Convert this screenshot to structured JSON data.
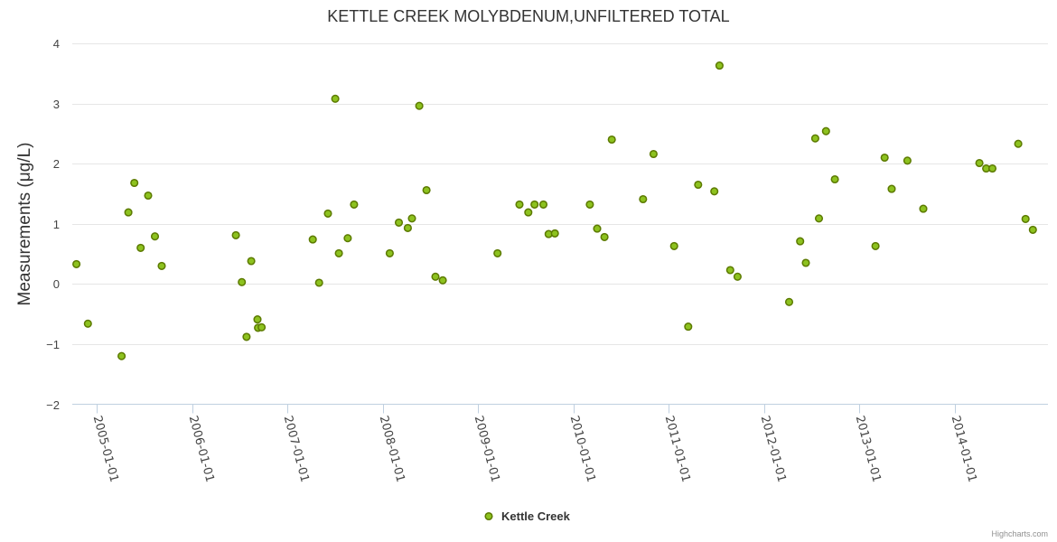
{
  "chart_data": {
    "type": "scatter",
    "title": "KETTLE CREEK MOLYBDENUM,UNFILTERED TOTAL",
    "ylabel": "Measurements (μg/L)",
    "xlabel": "",
    "ylim": [
      -2,
      4
    ],
    "yticks": [
      "−2",
      "−1",
      "0",
      "1",
      "2",
      "3",
      "4"
    ],
    "xticks": [
      "2005-01-01",
      "2006-01-01",
      "2007-01-01",
      "2008-01-01",
      "2009-01-01",
      "2010-01-01",
      "2011-01-01",
      "2012-01-01",
      "2013-01-01",
      "2014-01-01"
    ],
    "xlim": [
      "2004-09-28",
      "2014-12-25"
    ],
    "grid": true,
    "legend_position": "bottom-center",
    "series": [
      {
        "name": "Kettle Creek",
        "color": "#8dc21f",
        "points": [
          {
            "x": "2004-10-14",
            "y": 0.33
          },
          {
            "x": "2004-11-27",
            "y": -0.66
          },
          {
            "x": "2005-04-05",
            "y": -1.2
          },
          {
            "x": "2005-05-01",
            "y": 1.19
          },
          {
            "x": "2005-05-24",
            "y": 1.68
          },
          {
            "x": "2005-06-17",
            "y": 0.6
          },
          {
            "x": "2005-07-16",
            "y": 1.47
          },
          {
            "x": "2005-08-11",
            "y": 0.79
          },
          {
            "x": "2005-09-06",
            "y": 0.3
          },
          {
            "x": "2006-06-17",
            "y": 0.81
          },
          {
            "x": "2006-07-10",
            "y": 0.03
          },
          {
            "x": "2006-07-28",
            "y": -0.88
          },
          {
            "x": "2006-08-15",
            "y": 0.38
          },
          {
            "x": "2006-09-08",
            "y": -0.59
          },
          {
            "x": "2006-09-10",
            "y": -0.73
          },
          {
            "x": "2006-09-24",
            "y": -0.72
          },
          {
            "x": "2007-04-08",
            "y": 0.74
          },
          {
            "x": "2007-05-02",
            "y": 0.02
          },
          {
            "x": "2007-06-05",
            "y": 1.17
          },
          {
            "x": "2007-07-03",
            "y": 3.08
          },
          {
            "x": "2007-07-17",
            "y": 0.51
          },
          {
            "x": "2007-08-20",
            "y": 0.76
          },
          {
            "x": "2007-09-13",
            "y": 1.32
          },
          {
            "x": "2008-01-28",
            "y": 0.51
          },
          {
            "x": "2008-03-03",
            "y": 1.02
          },
          {
            "x": "2008-04-06",
            "y": 0.93
          },
          {
            "x": "2008-04-22",
            "y": 1.09
          },
          {
            "x": "2008-05-20",
            "y": 2.96
          },
          {
            "x": "2008-06-17",
            "y": 1.56
          },
          {
            "x": "2008-07-21",
            "y": 0.12
          },
          {
            "x": "2008-08-18",
            "y": 0.06
          },
          {
            "x": "2009-03-16",
            "y": 0.51
          },
          {
            "x": "2009-06-08",
            "y": 1.32
          },
          {
            "x": "2009-07-12",
            "y": 1.19
          },
          {
            "x": "2009-08-05",
            "y": 1.32
          },
          {
            "x": "2009-09-08",
            "y": 1.32
          },
          {
            "x": "2009-09-28",
            "y": 0.83
          },
          {
            "x": "2009-10-22",
            "y": 0.84
          },
          {
            "x": "2010-03-05",
            "y": 1.32
          },
          {
            "x": "2010-04-02",
            "y": 0.92
          },
          {
            "x": "2010-04-30",
            "y": 0.78
          },
          {
            "x": "2010-05-28",
            "y": 2.4
          },
          {
            "x": "2010-09-25",
            "y": 1.41
          },
          {
            "x": "2010-11-04",
            "y": 2.16
          },
          {
            "x": "2011-01-22",
            "y": 0.63
          },
          {
            "x": "2011-03-17",
            "y": -0.71
          },
          {
            "x": "2011-04-24",
            "y": 1.65
          },
          {
            "x": "2011-06-25",
            "y": 1.54
          },
          {
            "x": "2011-07-15",
            "y": 3.63
          },
          {
            "x": "2011-08-25",
            "y": 0.23
          },
          {
            "x": "2011-09-22",
            "y": 0.12
          },
          {
            "x": "2012-04-07",
            "y": -0.3
          },
          {
            "x": "2012-05-19",
            "y": 0.71
          },
          {
            "x": "2012-06-10",
            "y": 0.35
          },
          {
            "x": "2012-07-16",
            "y": 2.42
          },
          {
            "x": "2012-07-30",
            "y": 1.09
          },
          {
            "x": "2012-08-26",
            "y": 2.54
          },
          {
            "x": "2012-09-29",
            "y": 1.74
          },
          {
            "x": "2013-03-04",
            "y": 0.63
          },
          {
            "x": "2013-04-08",
            "y": 2.1
          },
          {
            "x": "2013-05-05",
            "y": 1.58
          },
          {
            "x": "2013-07-04",
            "y": 2.05
          },
          {
            "x": "2013-09-03",
            "y": 1.25
          },
          {
            "x": "2014-04-06",
            "y": 2.01
          },
          {
            "x": "2014-05-02",
            "y": 1.92
          },
          {
            "x": "2014-05-26",
            "y": 1.92
          },
          {
            "x": "2014-09-02",
            "y": 2.33
          },
          {
            "x": "2014-09-30",
            "y": 1.08
          },
          {
            "x": "2014-10-28",
            "y": 0.9
          }
        ]
      }
    ]
  },
  "legend": {
    "items": [
      {
        "label": "Kettle Creek"
      }
    ]
  },
  "credits": "Highcharts.com"
}
